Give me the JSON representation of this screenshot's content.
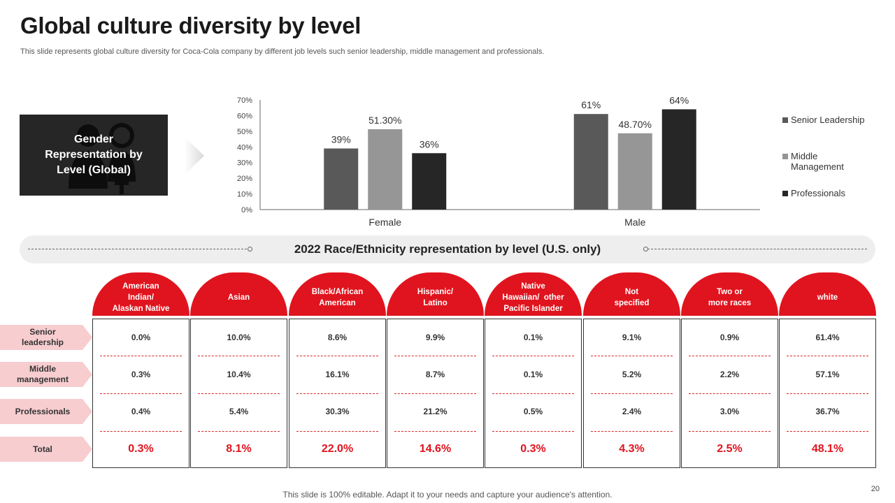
{
  "slide": {
    "title": "Global culture diversity by level",
    "subtitle": "This slide represents global culture diversity for Coca-Cola company by different job levels such senior leadership, middle management and professionals.",
    "footer": "This slide is 100% editable. Adapt it to your needs and capture your audience's attention.",
    "page_number": "20"
  },
  "gender_box": {
    "label_line1": "Gender",
    "label_line2": "Representation by",
    "label_line3": "Level (Global)",
    "icon": "male-female-people-icon"
  },
  "colors": {
    "senior": "#595959",
    "middle": "#969696",
    "professionals": "#262626",
    "accent": "#e0141e"
  },
  "chart_data": {
    "type": "bar",
    "categories": [
      "Female",
      "Male"
    ],
    "series": [
      {
        "name": "Senior Leadership",
        "values": [
          39,
          61
        ],
        "labels": [
          "39%",
          "61%"
        ]
      },
      {
        "name": "Middle Management",
        "values": [
          51.3,
          48.7
        ],
        "labels": [
          "51.30%",
          "48.70%"
        ]
      },
      {
        "name": "Professionals",
        "values": [
          36,
          64
        ],
        "labels": [
          "36%",
          "64%"
        ]
      }
    ],
    "ylim": [
      0,
      70
    ],
    "yticks": [
      "0%",
      "10%",
      "20%",
      "30%",
      "40%",
      "50%",
      "60%",
      "70%"
    ],
    "legend_position": "right",
    "grid": false
  },
  "race": {
    "title": "2022 Race/Ethnicity representation by level (U.S. only)",
    "row_labels": [
      {
        "line1": "Senior",
        "line2": "leadership"
      },
      {
        "line1": "Middle",
        "line2": "management"
      },
      {
        "line1": "Professionals",
        "line2": ""
      },
      {
        "line1": "Total",
        "line2": ""
      }
    ],
    "columns": [
      {
        "head": [
          "American",
          "Indian/",
          "Alaskan Native"
        ],
        "values": [
          "0.0%",
          "0.3%",
          "0.4%"
        ],
        "total": "0.3%"
      },
      {
        "head": [
          "Asian"
        ],
        "values": [
          "10.0%",
          "10.4%",
          "5.4%"
        ],
        "total": "8.1%"
      },
      {
        "head": [
          "Black/African",
          "American"
        ],
        "values": [
          "8.6%",
          "16.1%",
          "30.3%"
        ],
        "total": "22.0%"
      },
      {
        "head": [
          "Hispanic/",
          "Latino"
        ],
        "values": [
          "9.9%",
          "8.7%",
          "21.2%"
        ],
        "total": "14.6%"
      },
      {
        "head": [
          "Native",
          "Hawaiian/  other",
          "Pacific Islander"
        ],
        "values": [
          "0.1%",
          "0.1%",
          "0.5%"
        ],
        "total": "0.3%"
      },
      {
        "head": [
          "Not",
          "specified"
        ],
        "values": [
          "9.1%",
          "5.2%",
          "2.4%"
        ],
        "total": "4.3%"
      },
      {
        "head": [
          "Two or",
          "more races"
        ],
        "values": [
          "0.9%",
          "2.2%",
          "3.0%"
        ],
        "total": "2.5%"
      },
      {
        "head": [
          "white"
        ],
        "values": [
          "61.4%",
          "57.1%",
          "36.7%"
        ],
        "total": "48.1%"
      }
    ]
  }
}
